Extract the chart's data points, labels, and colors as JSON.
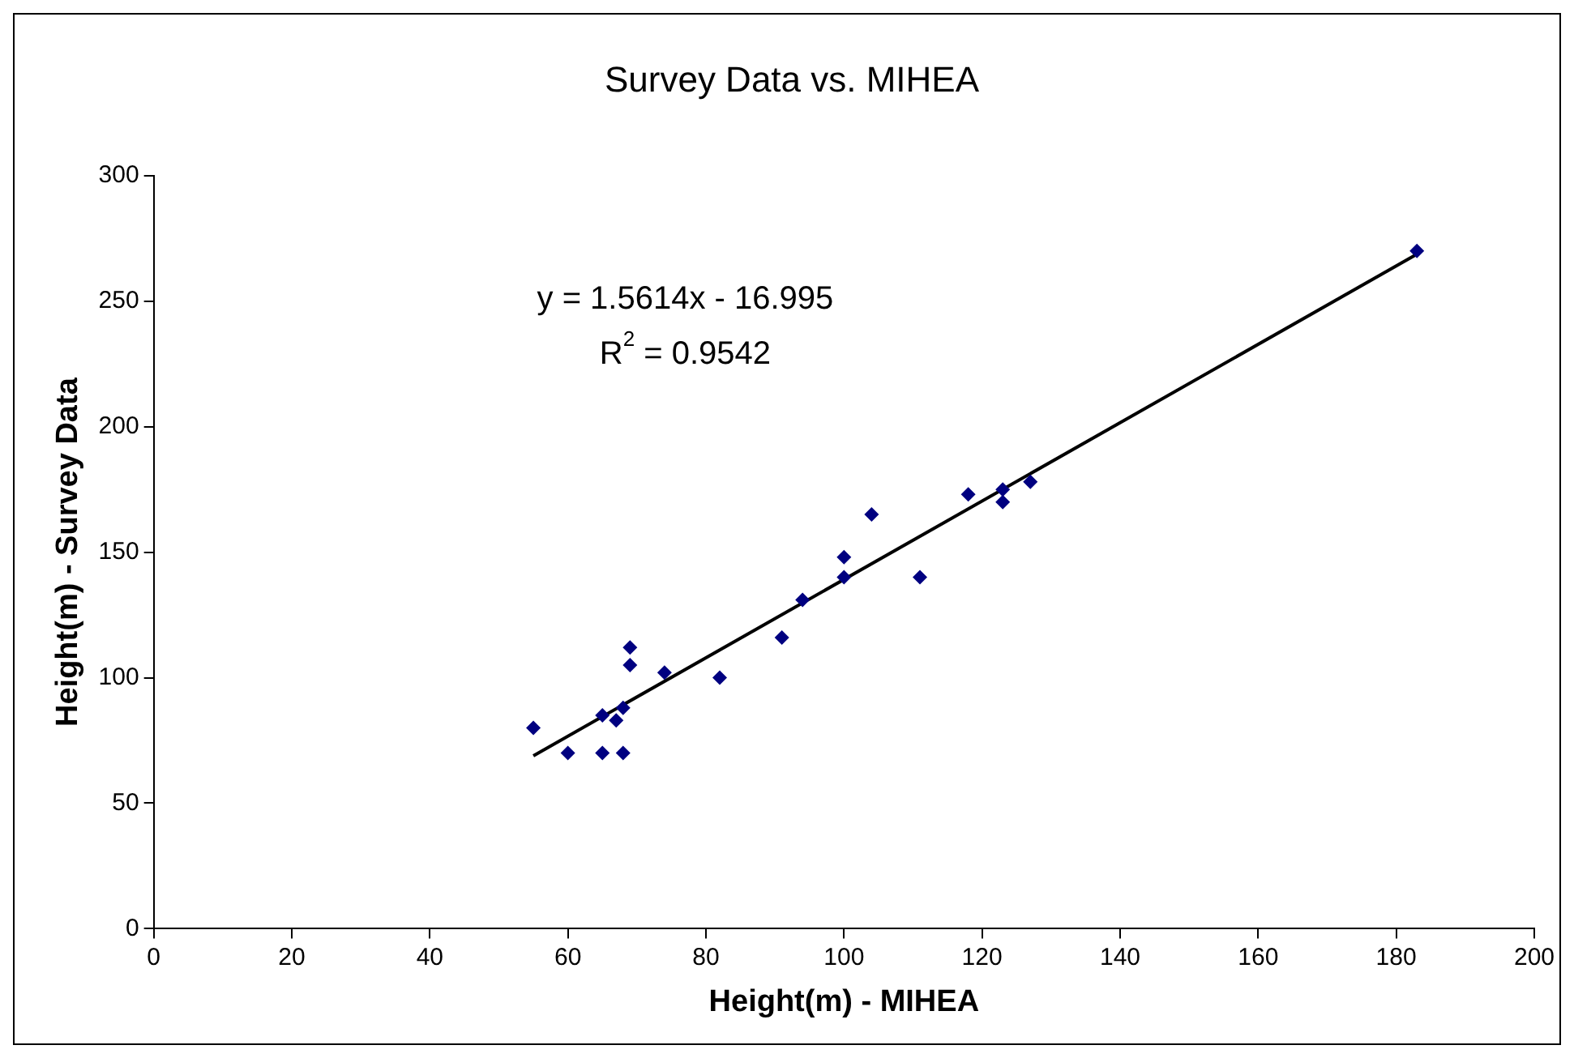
{
  "chart_data": {
    "type": "scatter",
    "title": "Survey Data vs. MIHEA",
    "xlabel": "Height(m) - MIHEA",
    "ylabel": "Height(m) - Survey Data",
    "annotations": [
      "y = 1.5614x - 16.995",
      "R$^{2}$ = 0.9542"
    ],
    "xlim": [
      0,
      200
    ],
    "xticks": [
      0,
      20,
      40,
      60,
      80,
      100,
      120,
      140,
      160,
      180,
      200
    ],
    "ylim": [
      0,
      300
    ],
    "yticks": [
      0,
      50,
      100,
      150,
      200,
      250,
      300
    ],
    "grid": false,
    "legend": false,
    "marker": "diamond",
    "series": [
      {
        "type": "scatter",
        "color": "#000080",
        "x": [
          55,
          60,
          65,
          65,
          67,
          68,
          68,
          69,
          69,
          74,
          82,
          91,
          94,
          100,
          100,
          104,
          111,
          118,
          123,
          123,
          127,
          183
        ],
        "values": [
          80,
          70,
          85,
          70,
          83,
          88,
          70,
          112,
          105,
          102,
          100,
          116,
          131,
          148,
          140,
          165,
          140,
          173,
          175,
          170,
          178,
          270
        ]
      },
      {
        "type": "line",
        "color": "#000000",
        "marker": "none",
        "line_style": "solid",
        "x": [
          55,
          183
        ],
        "values": [
          68.9,
          268.7
        ]
      }
    ]
  }
}
